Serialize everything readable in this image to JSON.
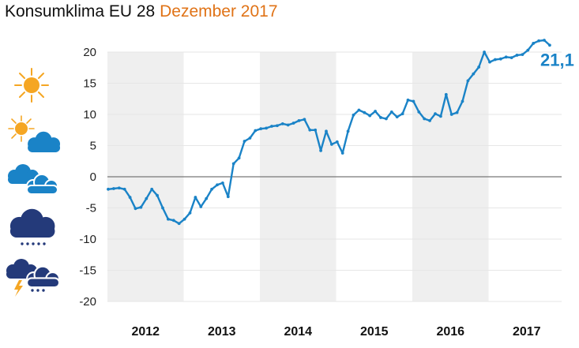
{
  "title": {
    "main": "Konsumklima EU 28",
    "period": "Dezember 2017"
  },
  "icons": [
    "sun-icon",
    "sun-cloud-icon",
    "cloud-icon",
    "rain-cloud-icon",
    "storm-cloud-icon"
  ],
  "colors": {
    "line": "#1a83c7",
    "accent": "#e07317",
    "band": "#efefef",
    "grid": "#e6e6e6",
    "zero": "#777777"
  },
  "chart_data": {
    "type": "line",
    "title": "Konsumklima EU 28",
    "subtitle": "Dezember 2017",
    "xlabel": "",
    "ylabel": "",
    "ylim": [
      -20,
      22
    ],
    "yticks": [
      "20",
      "15",
      "10",
      "5",
      "0",
      "-5",
      "-10",
      "-15",
      "-20"
    ],
    "years": [
      "2012",
      "2013",
      "2014",
      "2015",
      "2016",
      "2017"
    ],
    "shaded_years": [
      "2012",
      "2014",
      "2016"
    ],
    "grid": true,
    "end_label": "21,1",
    "series": [
      {
        "name": "",
        "values": [
          -2.0,
          -1.9,
          -1.8,
          -2.0,
          -3.3,
          -5.1,
          -4.9,
          -3.5,
          -2.0,
          -3.0,
          -5.0,
          -6.8,
          -7.0,
          -7.5,
          -6.8,
          -5.8,
          -3.3,
          -4.8,
          -3.5,
          -2.0,
          -1.3,
          -1.0,
          -3.2,
          2.1,
          3.0,
          5.7,
          6.2,
          7.4,
          7.7,
          7.8,
          8.1,
          8.2,
          8.5,
          8.3,
          8.6,
          9.0,
          9.2,
          7.5,
          7.5,
          4.2,
          7.3,
          5.2,
          5.6,
          3.8,
          7.3,
          9.9,
          10.7,
          10.3,
          9.8,
          10.5,
          9.5,
          9.3,
          10.4,
          9.6,
          10.1,
          12.3,
          12.1,
          10.4,
          9.3,
          9.0,
          10.1,
          9.7,
          13.2,
          10.0,
          10.3,
          12.1,
          15.4,
          16.5,
          17.6,
          20.0,
          18.4,
          18.8,
          18.9,
          19.2,
          19.1,
          19.5,
          19.6,
          20.3,
          21.4,
          21.8,
          21.9,
          21.1
        ]
      }
    ]
  }
}
